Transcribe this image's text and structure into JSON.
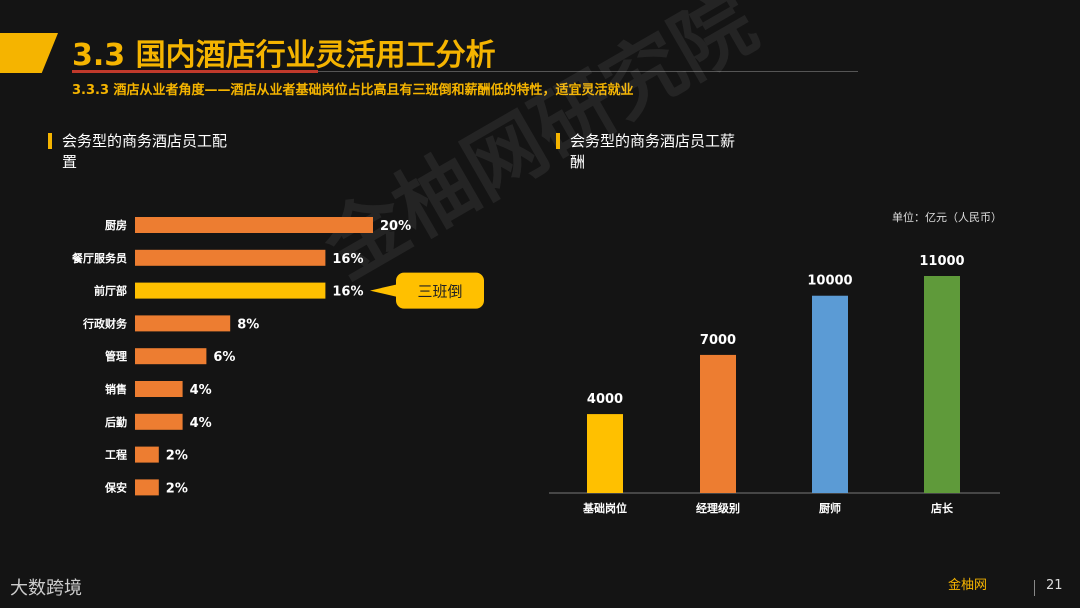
{
  "header": {
    "title": "3.3 国内酒店行业灵活用工分析",
    "subtitle": "3.3.3 酒店从业者角度——酒店从业者基础岗位占比高且有三班倒和薪酬低的特性，适宜灵活就业"
  },
  "watermark": "金柚网研究院",
  "colors": {
    "accent": "#f5b400",
    "orange": "#ed7d31",
    "highlight": "#ffc000",
    "blue": "#5b9bd5",
    "green": "#5f9a3a"
  },
  "chart_data": [
    {
      "type": "bar",
      "orientation": "horizontal",
      "title": "会务型的商务酒店员工配置",
      "title_lines": [
        "会务型的商务酒店员工配",
        "置"
      ],
      "categories": [
        "厨房",
        "餐厅服务员",
        "前厅部",
        "行政财务",
        "管理",
        "销售",
        "后勤",
        "工程",
        "保安"
      ],
      "values": [
        20,
        16,
        16,
        8,
        6,
        4,
        4,
        2,
        2
      ],
      "value_labels": [
        "20%",
        "16%",
        "16%",
        "8%",
        "6%",
        "4%",
        "4%",
        "2%",
        "2%"
      ],
      "highlight_category": "前厅部",
      "annotation": "三班倒"
    },
    {
      "type": "bar",
      "orientation": "vertical",
      "title": "会务型的商务酒店员工薪酬",
      "title_lines": [
        "会务型的商务酒店员工薪",
        "酬"
      ],
      "unit": "单位：亿元（人民币）",
      "categories": [
        "基础岗位",
        "经理级别",
        "厨师",
        "店长"
      ],
      "values": [
        4000,
        7000,
        10000,
        11000
      ],
      "value_labels": [
        "4000",
        "7000",
        "10000",
        "11000"
      ],
      "colors": [
        "#ffc000",
        "#ed7d31",
        "#5b9bd5",
        "#5f9a3a"
      ]
    }
  ],
  "footer": {
    "left_logo": "大数跨境",
    "brand_logo": "金柚网",
    "page_number": "21"
  }
}
